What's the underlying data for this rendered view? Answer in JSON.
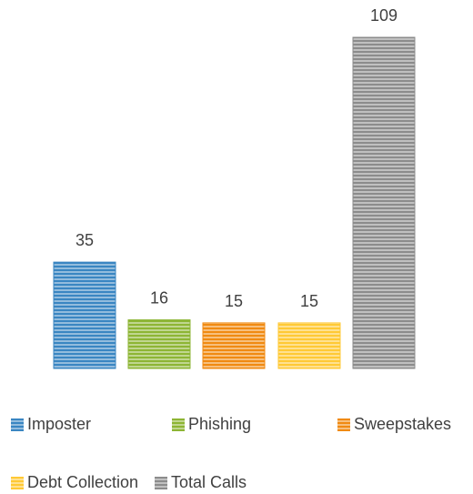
{
  "chart_data": {
    "type": "bar",
    "categories": [
      "Imposter",
      "Phishing",
      "Sweepstakes",
      "Debt Collection",
      "Total Calls"
    ],
    "values": [
      35,
      16,
      15,
      15,
      109
    ],
    "colors": [
      "#3A86C2",
      "#8DB534",
      "#F08A12",
      "#FFC935",
      "#8C8C8C"
    ],
    "ylim": [
      0,
      109
    ],
    "grid": false,
    "data_labels": [
      "35",
      "16",
      "15",
      "15",
      "109"
    ],
    "legend_position": "bottom",
    "series": [
      {
        "name": "Imposter",
        "value": 35
      },
      {
        "name": "Phishing",
        "value": 16
      },
      {
        "name": "Sweepstakes",
        "value": 15
      },
      {
        "name": "Debt Collection",
        "value": 15
      },
      {
        "name": "Total Calls",
        "value": 109
      }
    ]
  }
}
